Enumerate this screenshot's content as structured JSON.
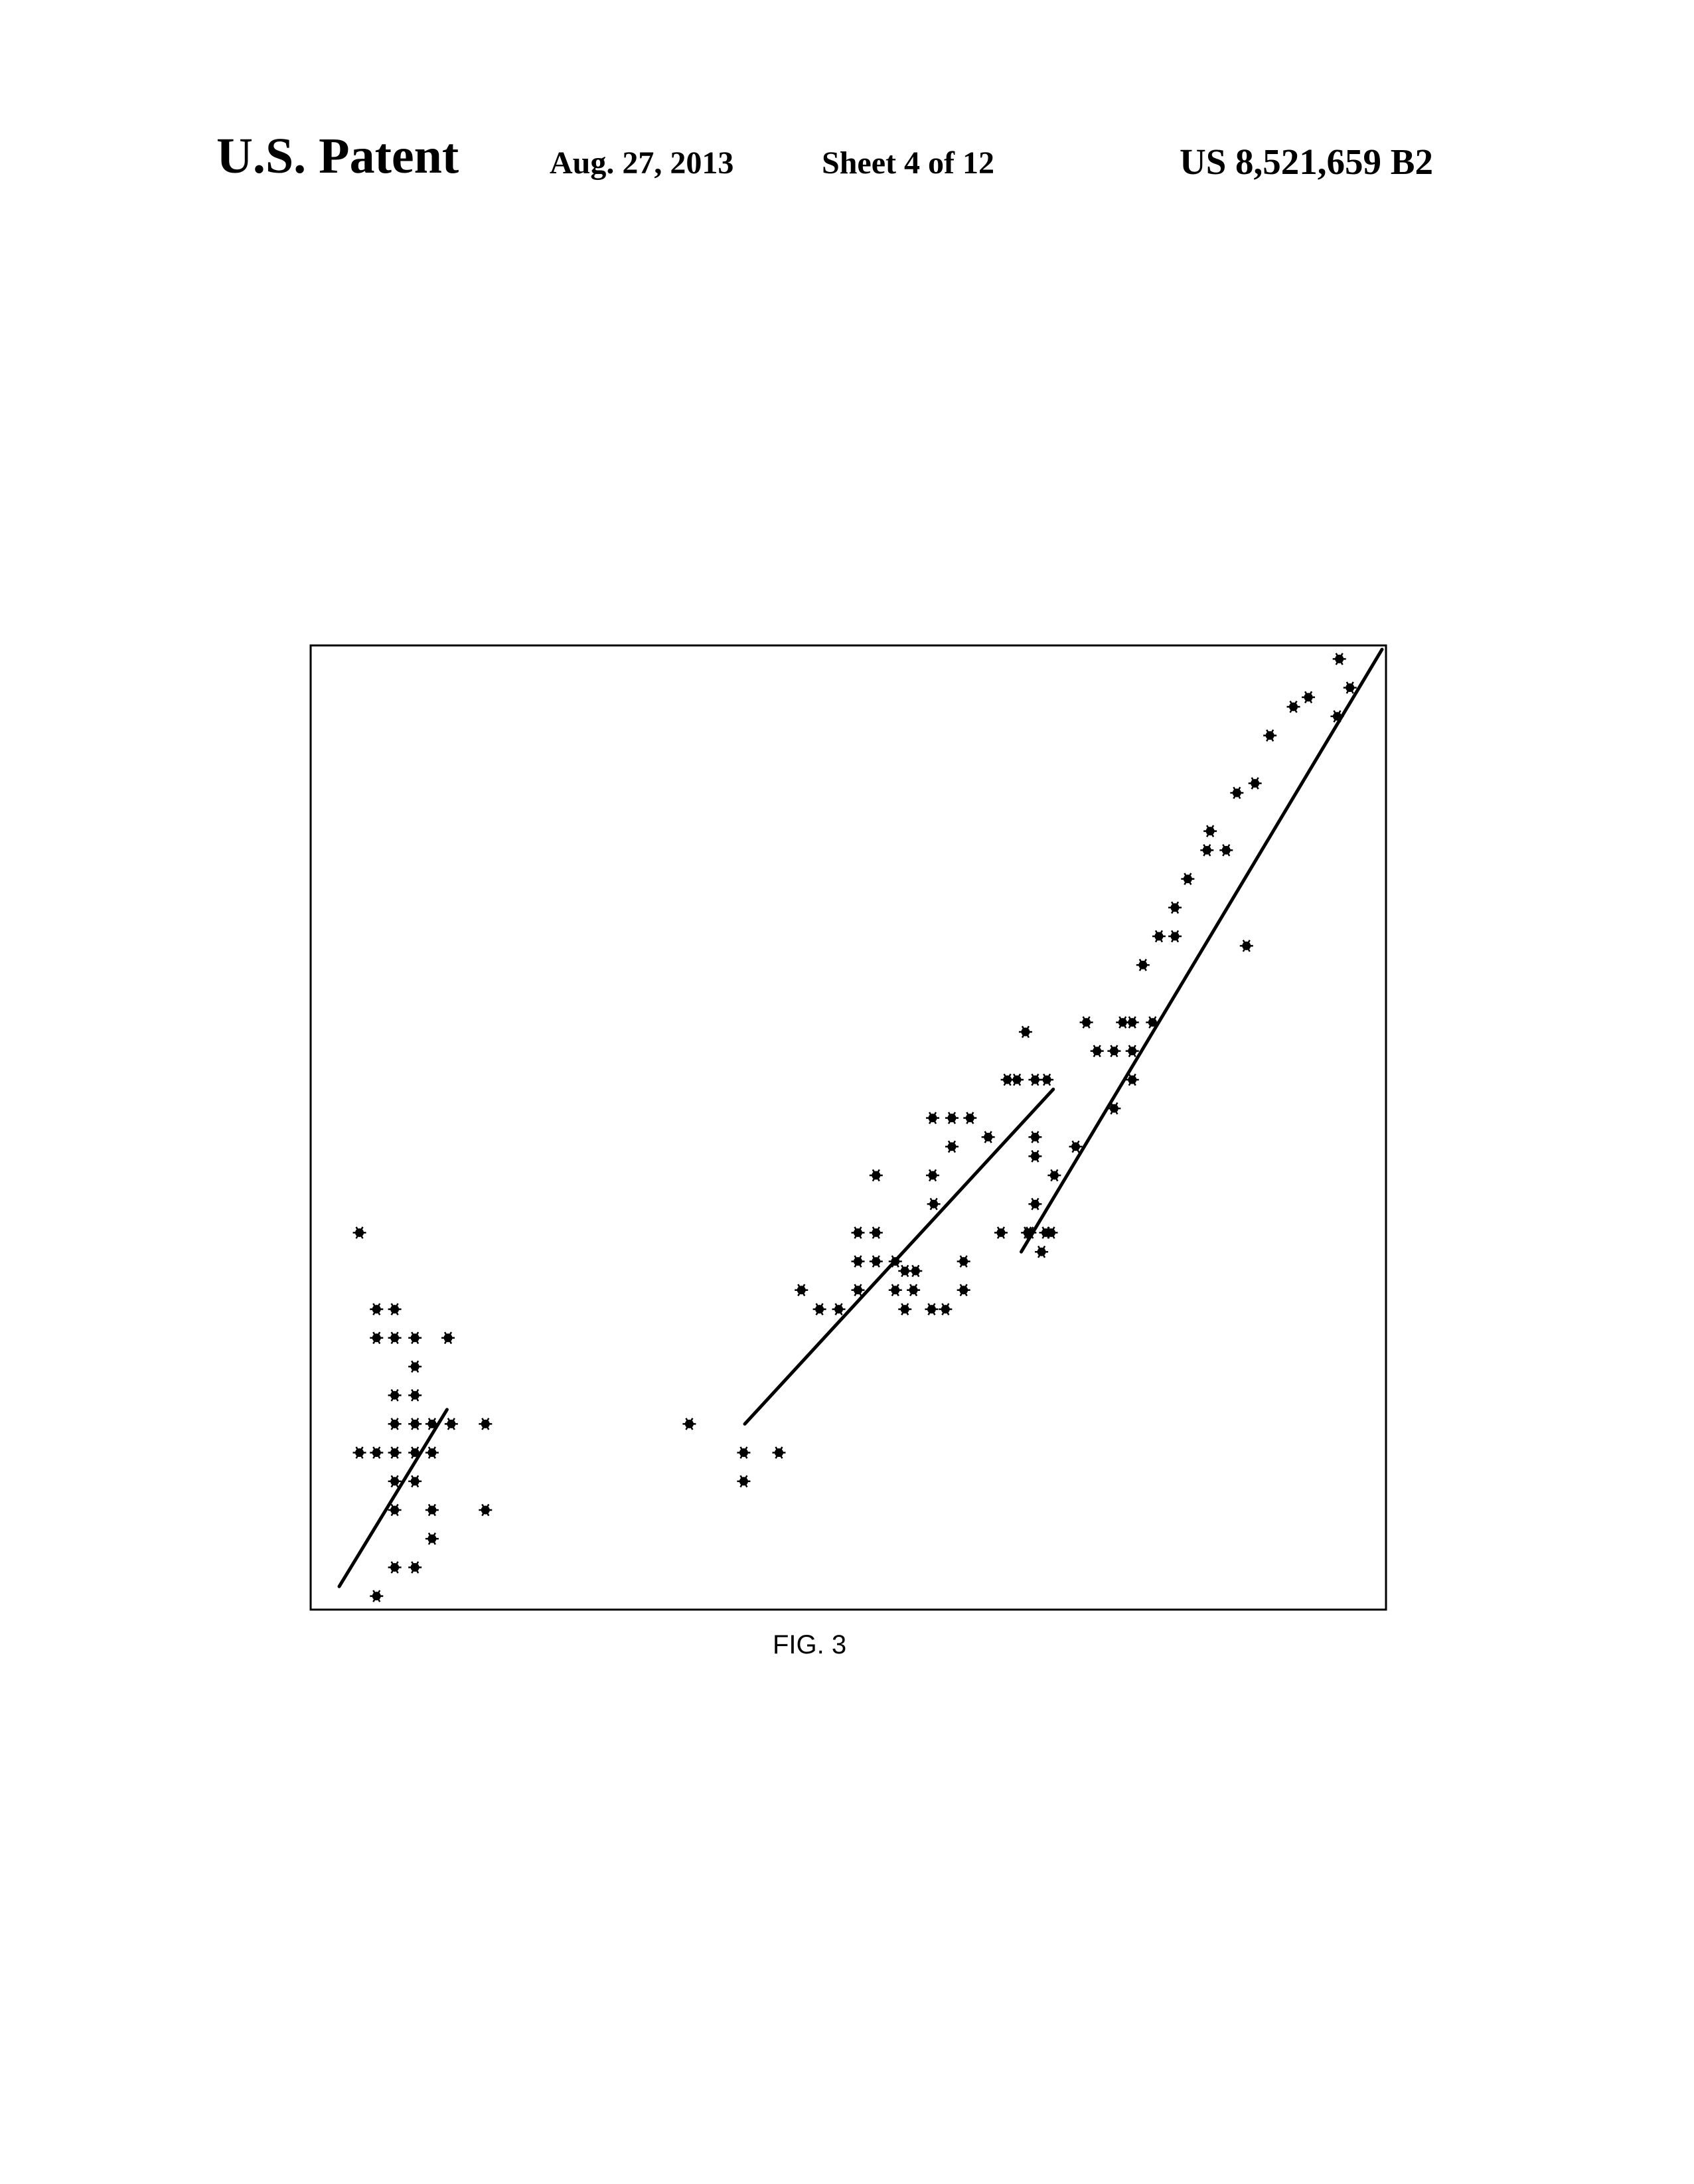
{
  "header": {
    "left": "U.S. Patent",
    "date": "Aug. 27, 2013",
    "sheet": "Sheet 4 of 12",
    "patent_number": "US 8,521,659 B2"
  },
  "figure": {
    "caption": "FIG. 3"
  },
  "chart_data": {
    "type": "scatter",
    "title": "",
    "xlabel": "",
    "ylabel": "",
    "xlim": [
      0,
      100
    ],
    "ylim": [
      0,
      100
    ],
    "grid": false,
    "marker_color": "#000000",
    "series": [
      {
        "values": [
          [
            4.2,
            39
          ],
          [
            5.8,
            31
          ],
          [
            7.5,
            31
          ],
          [
            5.8,
            28
          ],
          [
            7.5,
            28
          ],
          [
            9.4,
            28
          ],
          [
            12.5,
            28
          ],
          [
            9.4,
            25
          ],
          [
            7.5,
            22
          ],
          [
            9.4,
            22
          ],
          [
            11.0,
            19
          ],
          [
            7.5,
            19
          ],
          [
            9.4,
            19
          ],
          [
            11.0,
            16
          ],
          [
            12.8,
            19
          ],
          [
            16.0,
            19
          ],
          [
            4.2,
            16
          ],
          [
            5.8,
            16
          ],
          [
            7.5,
            16
          ],
          [
            9.4,
            16
          ],
          [
            9.4,
            13
          ],
          [
            7.5,
            13
          ],
          [
            7.5,
            10
          ],
          [
            16.0,
            10
          ],
          [
            11.0,
            10
          ],
          [
            11.0,
            7
          ],
          [
            9.4,
            4
          ],
          [
            7.5,
            4
          ],
          [
            5.8,
            1
          ]
        ]
      },
      {
        "values": [
          [
            35.1,
            19
          ],
          [
            40.2,
            16
          ],
          [
            43.5,
            16
          ],
          [
            40.2,
            13
          ],
          [
            45.6,
            33
          ],
          [
            47.3,
            31
          ],
          [
            49.1,
            31
          ],
          [
            50.9,
            33
          ],
          [
            50.9,
            36
          ],
          [
            52.6,
            36
          ],
          [
            54.4,
            36
          ],
          [
            52.6,
            39
          ],
          [
            50.9,
            39
          ],
          [
            52.6,
            45
          ],
          [
            54.4,
            33
          ],
          [
            55.3,
            35
          ],
          [
            56.3,
            35
          ],
          [
            56.1,
            33
          ],
          [
            55.3,
            31
          ],
          [
            58.0,
            42
          ],
          [
            57.9,
            51
          ],
          [
            59.7,
            51
          ],
          [
            59.7,
            48
          ],
          [
            61.4,
            51
          ],
          [
            63.1,
            49
          ],
          [
            60.8,
            33
          ],
          [
            60.8,
            36
          ],
          [
            59.1,
            31
          ],
          [
            57.8,
            31
          ],
          [
            64.9,
            55
          ],
          [
            67.5,
            55
          ],
          [
            67.5,
            49
          ],
          [
            69.3,
            45
          ],
          [
            68.6,
            55
          ],
          [
            67.5,
            42
          ],
          [
            67.0,
            39
          ],
          [
            69.0,
            39
          ],
          [
            67.5,
            47
          ],
          [
            66.6,
            60
          ],
          [
            57.9,
            45
          ],
          [
            65.8,
            55
          ],
          [
            64.3,
            39
          ]
        ]
      },
      {
        "values": [
          [
            66.8,
            39
          ],
          [
            68.5,
            39
          ],
          [
            68.1,
            37
          ],
          [
            71.3,
            48
          ],
          [
            72.3,
            61
          ],
          [
            74.9,
            58
          ],
          [
            75.7,
            61
          ],
          [
            76.6,
            55
          ],
          [
            76.6,
            58
          ],
          [
            77.6,
            67
          ],
          [
            79.1,
            70
          ],
          [
            80.6,
            70
          ],
          [
            80.6,
            73
          ],
          [
            81.8,
            76
          ],
          [
            83.9,
            81
          ],
          [
            83.6,
            79
          ],
          [
            85.4,
            79
          ],
          [
            86.4,
            85
          ],
          [
            88.1,
            86
          ],
          [
            89.5,
            91
          ],
          [
            91.7,
            94
          ],
          [
            93.1,
            95
          ],
          [
            96.0,
            99
          ],
          [
            97.0,
            96
          ],
          [
            95.8,
            93
          ],
          [
            76.6,
            61
          ],
          [
            74.9,
            52
          ],
          [
            73.3,
            58
          ],
          [
            78.5,
            61
          ],
          [
            87.3,
            69
          ]
        ]
      }
    ],
    "fit_lines": [
      {
        "from": [
          2.3,
          2
        ],
        "to": [
          12.4,
          20.5
        ]
      },
      {
        "from": [
          40.3,
          19
        ],
        "to": [
          69.2,
          54
        ]
      },
      {
        "from": [
          66.2,
          37
        ],
        "to": [
          100,
          100
        ]
      }
    ]
  }
}
